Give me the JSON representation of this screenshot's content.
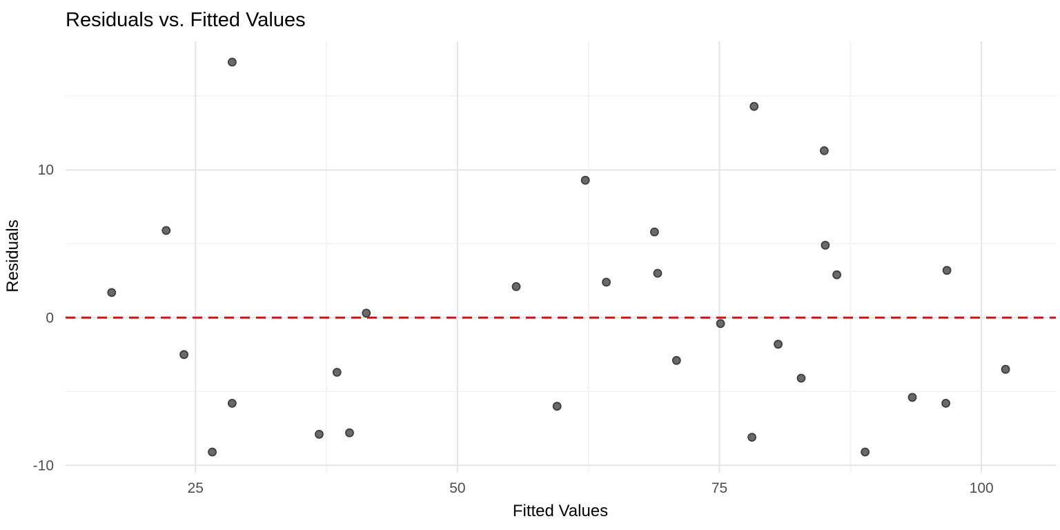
{
  "chart_data": {
    "type": "scatter",
    "title": "Residuals vs. Fitted Values",
    "xlabel": "Fitted Values",
    "ylabel": "Residuals",
    "xlim": [
      12.6,
      107.1
    ],
    "ylim": [
      -10.5,
      18.7
    ],
    "x_ticks": [
      25,
      50,
      75,
      100
    ],
    "y_ticks": [
      -10,
      0,
      10
    ],
    "x_minor_ticks": [
      37.5,
      62.5,
      87.5
    ],
    "y_minor_ticks": [
      -5,
      5,
      15
    ],
    "grid": "on",
    "legend_position": "none",
    "reference_line": {
      "axis": "y",
      "value": 0,
      "style": "dashed",
      "color": "#FF0000"
    },
    "series": [
      {
        "name": "residuals",
        "points": [
          [
            17.0,
            1.7
          ],
          [
            22.2,
            5.9
          ],
          [
            23.9,
            -2.5
          ],
          [
            26.6,
            -9.1
          ],
          [
            28.5,
            17.3
          ],
          [
            28.5,
            -5.8
          ],
          [
            36.8,
            -7.9
          ],
          [
            38.5,
            -3.7
          ],
          [
            39.7,
            -7.8
          ],
          [
            41.3,
            0.3
          ],
          [
            55.6,
            2.1
          ],
          [
            59.5,
            -6.0
          ],
          [
            62.2,
            9.3
          ],
          [
            64.2,
            2.4
          ],
          [
            68.8,
            5.8
          ],
          [
            69.1,
            3.0
          ],
          [
            70.9,
            -2.9
          ],
          [
            75.1,
            -0.4
          ],
          [
            78.1,
            -8.1
          ],
          [
            78.3,
            14.3
          ],
          [
            80.6,
            -1.8
          ],
          [
            82.8,
            -4.1
          ],
          [
            85.0,
            11.3
          ],
          [
            85.1,
            4.9
          ],
          [
            86.2,
            2.9
          ],
          [
            88.9,
            -9.1
          ],
          [
            93.4,
            -5.4
          ],
          [
            96.6,
            -5.8
          ],
          [
            96.7,
            3.2
          ],
          [
            102.3,
            -3.5
          ]
        ]
      }
    ],
    "colors": {
      "background": "#FFFFFF",
      "grid_major": "#E4E4E4",
      "grid_minor": "#F1F1F1",
      "point_fill": "#6A6A6A",
      "point_stroke": "#3D3D3D",
      "tick_label": "#4D4D4D",
      "title": "#000000",
      "reference_line": "#FF0000"
    }
  }
}
